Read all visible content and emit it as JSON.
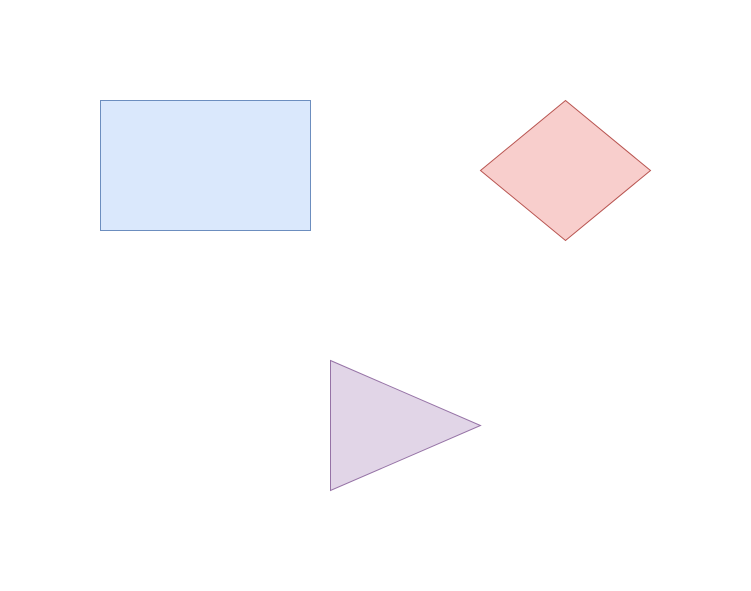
{
  "diagram": {
    "background": "#ffffff",
    "shapes": [
      {
        "id": "rectangle",
        "kind": "rectangle",
        "fill": "#dae8fc",
        "stroke": "#6c8ebf",
        "label": ""
      },
      {
        "id": "diamond",
        "kind": "rhombus",
        "fill": "#f8cecc",
        "stroke": "#b85450",
        "label": ""
      },
      {
        "id": "triangle",
        "kind": "triangle",
        "fill": "#e1d5e7",
        "stroke": "#9673a6",
        "label": ""
      }
    ]
  }
}
